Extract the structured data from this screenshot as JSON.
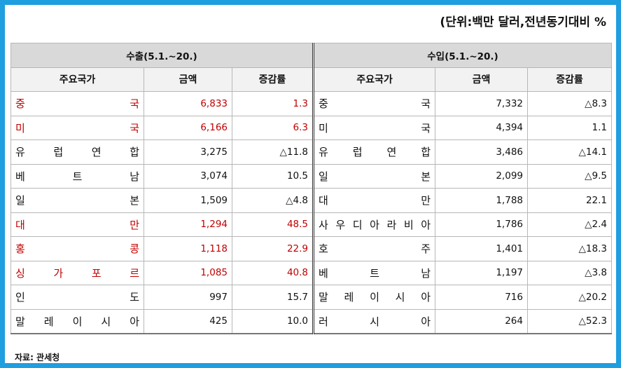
{
  "unit_note": "(단위:백만 달러,전년동기대비 %",
  "export": {
    "title": "수출(5.1.~20.)",
    "col_country": "주요국가",
    "col_amount": "금액",
    "col_rate": "증감률",
    "rows": [
      {
        "country": "중국",
        "amount": "6,833",
        "rate": "1.3",
        "highlight": true
      },
      {
        "country": "미국",
        "amount": "6,166",
        "rate": "6.3",
        "highlight": true
      },
      {
        "country": "유럽연합",
        "amount": "3,275",
        "rate": "△11.8",
        "highlight": false
      },
      {
        "country": "베트남",
        "amount": "3,074",
        "rate": "10.5",
        "highlight": false
      },
      {
        "country": "일본",
        "amount": "1,509",
        "rate": "△4.8",
        "highlight": false
      },
      {
        "country": "대만",
        "amount": "1,294",
        "rate": "48.5",
        "highlight": true
      },
      {
        "country": "홍콩",
        "amount": "1,118",
        "rate": "22.9",
        "highlight": true
      },
      {
        "country": "싱가포르",
        "amount": "1,085",
        "rate": "40.8",
        "highlight": true
      },
      {
        "country": "인도",
        "amount": "997",
        "rate": "15.7",
        "highlight": false
      },
      {
        "country": "말레이시아",
        "amount": "425",
        "rate": "10.0",
        "highlight": false
      }
    ]
  },
  "import": {
    "title": "수입(5.1.~20.)",
    "col_country": "주요국가",
    "col_amount": "금액",
    "col_rate": "증감률",
    "rows": [
      {
        "country": "중국",
        "amount": "7,332",
        "rate": "△8.3"
      },
      {
        "country": "미국",
        "amount": "4,394",
        "rate": "1.1"
      },
      {
        "country": "유럽연합",
        "amount": "3,486",
        "rate": "△14.1"
      },
      {
        "country": "일본",
        "amount": "2,099",
        "rate": "△9.5"
      },
      {
        "country": "대만",
        "amount": "1,788",
        "rate": "22.1"
      },
      {
        "country": "사우디아라비아",
        "amount": "1,786",
        "rate": "△2.4"
      },
      {
        "country": "호주",
        "amount": "1,401",
        "rate": "△18.3"
      },
      {
        "country": "베트남",
        "amount": "1,197",
        "rate": "△3.8"
      },
      {
        "country": "말레이시아",
        "amount": "716",
        "rate": "△20.2"
      },
      {
        "country": "러시아",
        "amount": "264",
        "rate": "△52.3"
      }
    ]
  },
  "source": "자료: 관세청",
  "colors": {
    "background": "#1f9ee0",
    "highlight_text": "#c00000",
    "group_header": "#d9d9d9"
  }
}
